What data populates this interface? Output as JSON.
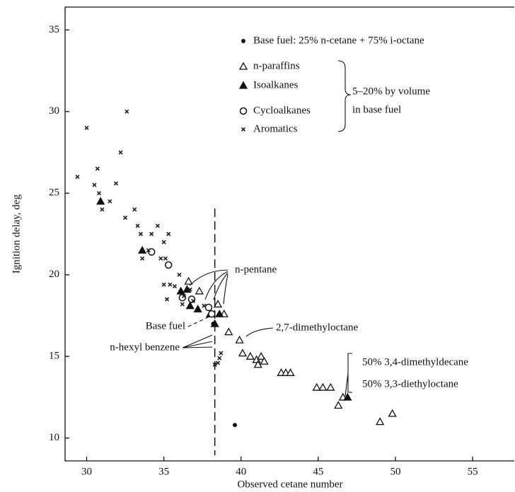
{
  "chart_data": {
    "type": "scatter",
    "xlabel": "Observed cetane number",
    "ylabel": "Ignition delay, deg",
    "xlim": [
      28.6,
      57.7
    ],
    "ylim": [
      8.6,
      36.4
    ],
    "xticks": [
      30,
      35,
      40,
      45,
      50,
      55
    ],
    "yticks": [
      10,
      15,
      20,
      25,
      30,
      35
    ],
    "reference_x": 38.3,
    "series": [
      {
        "name": "Base fuel: 25% n-cetane + 75% i-octane",
        "marker": "dot",
        "x": [
          38.2,
          39.6
        ],
        "values": [
          17.0,
          10.8
        ]
      },
      {
        "name": "n-paraffins",
        "marker": "open-triangle",
        "x": [
          36.6,
          37.3,
          38.5,
          38.9,
          39.2,
          39.9,
          40.1,
          40.6,
          41.0,
          41.3,
          41.5,
          41.1,
          42.6,
          42.9,
          43.2,
          44.9,
          45.3,
          45.8,
          46.3,
          46.6,
          49.0,
          49.8
        ],
        "values": [
          19.6,
          19.0,
          18.2,
          17.6,
          16.5,
          16.0,
          15.2,
          15.0,
          14.8,
          15.0,
          14.7,
          14.5,
          14.0,
          14.0,
          14.0,
          13.1,
          13.1,
          13.1,
          12.0,
          12.5,
          11.0,
          11.5
        ]
      },
      {
        "name": "Isoalkanes",
        "marker": "filled-triangle",
        "x": [
          30.9,
          33.6,
          36.1,
          36.5,
          36.7,
          37.2,
          38.0,
          38.6,
          38.3,
          46.9
        ],
        "values": [
          24.5,
          21.5,
          19.0,
          19.1,
          18.1,
          17.9,
          17.6,
          17.6,
          17.0,
          12.5
        ]
      },
      {
        "name": "Cycloalkanes",
        "marker": "open-circle",
        "x": [
          34.2,
          35.3,
          36.2,
          36.8,
          37.9,
          38.1
        ],
        "values": [
          21.4,
          20.6,
          18.6,
          18.5,
          18.0,
          17.6
        ]
      },
      {
        "name": "Aromatics",
        "marker": "cross",
        "x": [
          29.4,
          30.0,
          30.5,
          30.7,
          30.8,
          31.0,
          31.5,
          31.9,
          32.2,
          32.6,
          32.5,
          33.1,
          33.3,
          33.5,
          33.6,
          34.0,
          34.2,
          34.6,
          34.8,
          35.0,
          35.1,
          35.3,
          35.0,
          35.4,
          35.7,
          36.0,
          36.3,
          36.7,
          36.9,
          36.2,
          35.2,
          37.6,
          38.3,
          38.6,
          38.7,
          38.5
        ],
        "values": [
          26.0,
          29.0,
          25.5,
          26.5,
          25.0,
          24.0,
          24.5,
          25.6,
          27.5,
          30.0,
          23.5,
          24.0,
          23.0,
          22.5,
          21.0,
          21.5,
          22.5,
          23.0,
          21.0,
          22.0,
          21.0,
          22.5,
          19.4,
          19.4,
          19.3,
          20.0,
          18.7,
          19.1,
          18.4,
          18.2,
          18.5,
          18.1,
          14.5,
          14.9,
          15.2,
          14.6
        ]
      }
    ],
    "legend_note": [
      "5–20% by volume",
      "in base fuel"
    ],
    "annotations": [
      "n-pentane",
      "Base fuel",
      "n-hexyl benzene",
      "2,7-dimethyloctane",
      "50% 3,4-dimethyldecane",
      "50% 3,3-diethyloctane"
    ]
  }
}
